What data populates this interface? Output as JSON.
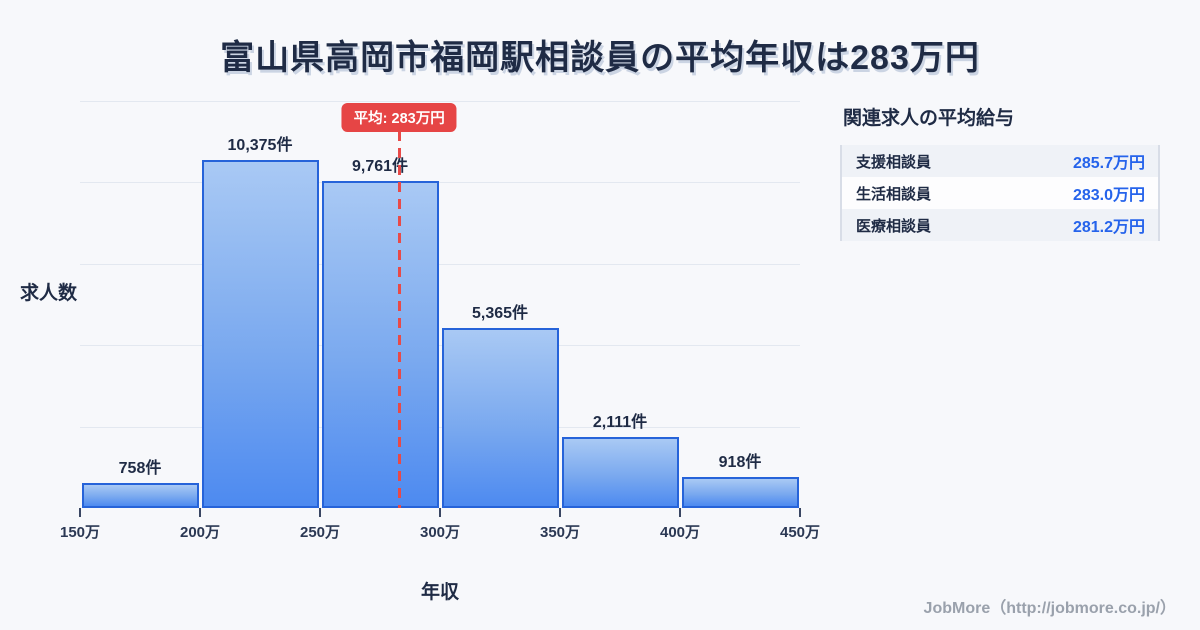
{
  "title": "富山県高岡市福岡駅相談員の平均年収は283万円",
  "chart_data": {
    "type": "bar",
    "title": "富山県高岡市福岡駅相談員の平均年収は283万円",
    "xlabel": "年収",
    "ylabel": "求人数",
    "categories": [
      "150万",
      "200万",
      "250万",
      "300万",
      "350万",
      "400万",
      "450万"
    ],
    "values": [
      758,
      10375,
      9761,
      5365,
      2111,
      918
    ],
    "bar_labels": [
      "758件",
      "10,375件",
      "9,761件",
      "5,365件",
      "2,111件",
      "918件"
    ],
    "xlim": [
      150,
      450
    ],
    "ylim": [
      0,
      12150
    ],
    "grid": true,
    "average_line": {
      "x_value": 283,
      "label": "平均: 283万円",
      "color": "#e64545"
    }
  },
  "side_panel": {
    "title": "関連求人の平均給与",
    "rows": [
      {
        "label": "支援相談員",
        "value": "285.7万円"
      },
      {
        "label": "生活相談員",
        "value": "283.0万円"
      },
      {
        "label": "医療相談員",
        "value": "281.2万円"
      }
    ]
  },
  "footer": {
    "credit": "JobMore（http://jobmore.co.jp/）"
  },
  "colors": {
    "bar_border": "#2663d9",
    "bar_top": "#a9c9f4",
    "bar_bottom": "#4d8af0",
    "accent_red": "#e64545",
    "value_blue": "#2563eb",
    "text_dark": "#1f2b45",
    "background": "#f7f8fb"
  }
}
